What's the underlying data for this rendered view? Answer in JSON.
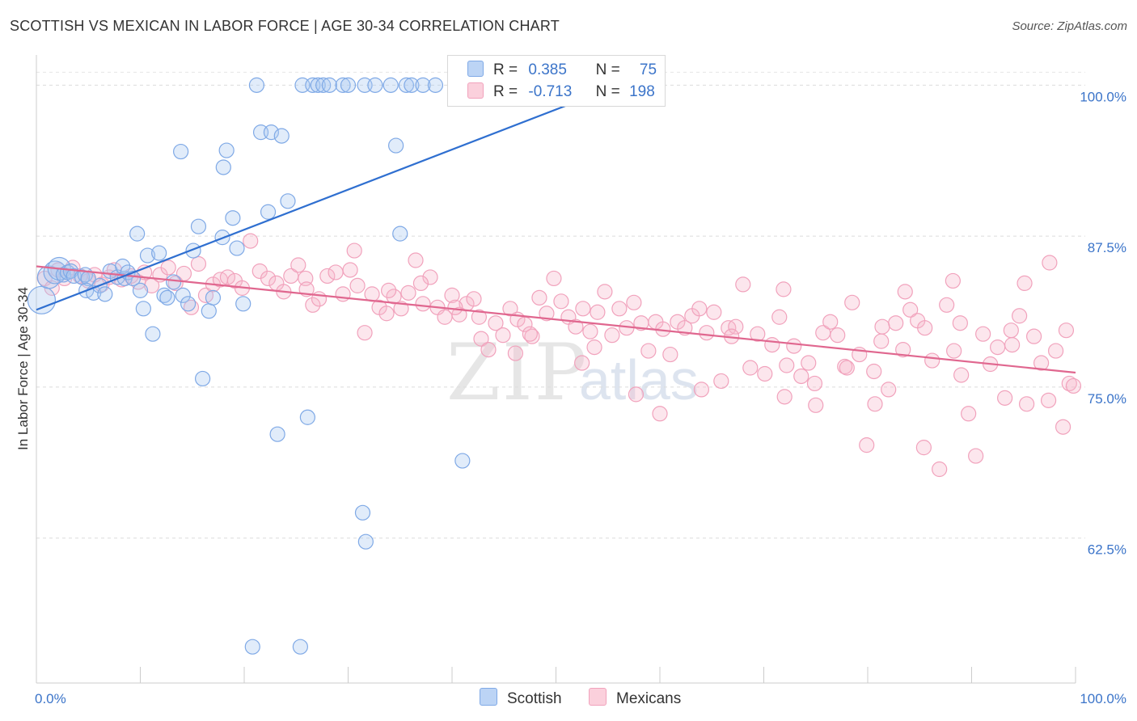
{
  "header": {
    "title": "SCOTTISH VS MEXICAN IN LABOR FORCE | AGE 30-34 CORRELATION CHART",
    "source": "Source: ZipAtlas.com"
  },
  "watermark": {
    "zip": "ZIP",
    "atlas": "atlas"
  },
  "legend": {
    "rows": [
      {
        "r_label": "R =",
        "r_value": "0.385",
        "n_label": "N =",
        "n_value": "75",
        "color": "#a8c8f0"
      },
      {
        "r_label": "R =",
        "r_value": "-0.713",
        "n_label": "N =",
        "n_value": "198",
        "color": "#f7b8cb"
      }
    ]
  },
  "bottom_legend": {
    "scottish": "Scottish",
    "mexicans": "Mexicans"
  },
  "chart_data": {
    "type": "scatter",
    "title": "SCOTTISH VS MEXICAN IN LABOR FORCE | AGE 30-34 CORRELATION CHART",
    "ylabel": "In Labor Force | Age 30-34",
    "xlabel": "",
    "xlim": [
      0,
      100
    ],
    "ylim": [
      50.5,
      102.5
    ],
    "x_tick_labels": [
      "0.0%",
      "100.0%"
    ],
    "y_ticks": [
      62.5,
      75.0,
      87.5,
      100.0
    ],
    "y_tick_labels": [
      "62.5%",
      "75.0%",
      "87.5%",
      "100.0%"
    ],
    "grid": true,
    "legend_position": "top-center",
    "colors": {
      "scottish": "#7fa9e6",
      "scottish_line": "#2f6fd0",
      "mexicans": "#f1a2bc",
      "mexicans_line": "#e0678f"
    },
    "series": [
      {
        "name": "Scottish",
        "r": 0.385,
        "n": 75,
        "trend": {
          "x": [
            0,
            60
          ],
          "y": [
            81.4,
            101.3
          ]
        },
        "points": [
          [
            0.5,
            82.2
          ],
          [
            1.2,
            84.1
          ],
          [
            1.8,
            84.5
          ],
          [
            2.2,
            84.8
          ],
          [
            2.6,
            84.3
          ],
          [
            3.0,
            84.5
          ],
          [
            3.3,
            84.6
          ],
          [
            3.6,
            84.2
          ],
          [
            4.4,
            84.1
          ],
          [
            4.7,
            84.3
          ],
          [
            5.0,
            84.0
          ],
          [
            4.8,
            83.0
          ],
          [
            5.5,
            82.8
          ],
          [
            6.1,
            83.4
          ],
          [
            6.6,
            82.7
          ],
          [
            7.1,
            84.6
          ],
          [
            7.8,
            84.1
          ],
          [
            8.5,
            84.0
          ],
          [
            8.3,
            85.0
          ],
          [
            8.8,
            84.5
          ],
          [
            9.3,
            84.0
          ],
          [
            9.7,
            87.7
          ],
          [
            10.0,
            83.0
          ],
          [
            10.3,
            81.5
          ],
          [
            10.7,
            85.9
          ],
          [
            11.2,
            79.4
          ],
          [
            11.8,
            86.1
          ],
          [
            12.3,
            82.6
          ],
          [
            12.6,
            82.4
          ],
          [
            13.2,
            83.7
          ],
          [
            14.1,
            82.6
          ],
          [
            14.6,
            81.9
          ],
          [
            15.1,
            86.3
          ],
          [
            15.6,
            88.3
          ],
          [
            16.0,
            75.7
          ],
          [
            16.6,
            81.3
          ],
          [
            17.0,
            82.4
          ],
          [
            17.9,
            87.4
          ],
          [
            18.3,
            94.6
          ],
          [
            18.9,
            89.0
          ],
          [
            19.3,
            86.5
          ],
          [
            19.9,
            81.9
          ],
          [
            13.9,
            94.5
          ],
          [
            18.0,
            93.2
          ],
          [
            21.2,
            100.0
          ],
          [
            21.6,
            96.1
          ],
          [
            22.3,
            89.5
          ],
          [
            22.6,
            96.1
          ],
          [
            23.2,
            71.1
          ],
          [
            23.6,
            95.8
          ],
          [
            24.2,
            90.4
          ],
          [
            25.6,
            100.0
          ],
          [
            26.1,
            72.5
          ],
          [
            26.6,
            100.0
          ],
          [
            27.1,
            100.0
          ],
          [
            27.6,
            100.0
          ],
          [
            28.2,
            100.0
          ],
          [
            29.5,
            100.0
          ],
          [
            30.0,
            100.0
          ],
          [
            31.6,
            100.0
          ],
          [
            32.6,
            100.0
          ],
          [
            34.1,
            100.0
          ],
          [
            35.6,
            100.0
          ],
          [
            36.1,
            100.0
          ],
          [
            37.2,
            100.0
          ],
          [
            38.4,
            100.0
          ],
          [
            40.6,
            100.0
          ],
          [
            41.7,
            100.0
          ],
          [
            35.0,
            87.7
          ],
          [
            34.6,
            95.0
          ],
          [
            31.4,
            64.6
          ],
          [
            31.7,
            62.2
          ],
          [
            20.8,
            53.5
          ],
          [
            25.4,
            53.5
          ],
          [
            41.0,
            68.9
          ],
          [
            59.6,
            100.0
          ]
        ]
      },
      {
        "name": "Mexicans",
        "r": -0.713,
        "n": 198,
        "trend": {
          "x": [
            0,
            100
          ],
          "y": [
            85.0,
            76.2
          ]
        },
        "points": [
          [
            0.8,
            84.0
          ],
          [
            1.5,
            83.2
          ],
          [
            2.1,
            84.7
          ],
          [
            2.7,
            84.0
          ],
          [
            3.5,
            84.9
          ],
          [
            4.2,
            84.2
          ],
          [
            5.0,
            83.8
          ],
          [
            5.6,
            84.3
          ],
          [
            6.3,
            83.5
          ],
          [
            7.0,
            84.1
          ],
          [
            7.5,
            84.7
          ],
          [
            8.2,
            83.9
          ],
          [
            9.1,
            84.2
          ],
          [
            9.8,
            83.7
          ],
          [
            10.4,
            84.5
          ],
          [
            11.1,
            83.4
          ],
          [
            11.9,
            84.3
          ],
          [
            12.7,
            84.9
          ],
          [
            13.4,
            83.6
          ],
          [
            14.2,
            84.4
          ],
          [
            14.9,
            81.6
          ],
          [
            15.6,
            85.2
          ],
          [
            16.3,
            82.6
          ],
          [
            17.0,
            83.5
          ],
          [
            17.7,
            83.9
          ],
          [
            18.4,
            84.1
          ],
          [
            19.1,
            83.8
          ],
          [
            19.8,
            83.2
          ],
          [
            20.6,
            87.1
          ],
          [
            21.5,
            84.6
          ],
          [
            22.3,
            84.0
          ],
          [
            23.1,
            83.6
          ],
          [
            23.8,
            82.9
          ],
          [
            24.5,
            84.2
          ],
          [
            25.2,
            85.1
          ],
          [
            25.9,
            84.0
          ],
          [
            26.6,
            81.8
          ],
          [
            27.2,
            82.3
          ],
          [
            28.0,
            84.2
          ],
          [
            28.8,
            84.5
          ],
          [
            29.5,
            82.7
          ],
          [
            30.2,
            84.7
          ],
          [
            30.9,
            83.4
          ],
          [
            31.6,
            79.5
          ],
          [
            32.3,
            82.7
          ],
          [
            33.0,
            81.6
          ],
          [
            33.7,
            81.1
          ],
          [
            34.4,
            82.5
          ],
          [
            35.1,
            81.5
          ],
          [
            35.8,
            82.8
          ],
          [
            36.5,
            85.5
          ],
          [
            37.2,
            81.9
          ],
          [
            37.9,
            84.1
          ],
          [
            38.6,
            81.6
          ],
          [
            39.3,
            80.8
          ],
          [
            40.0,
            82.6
          ],
          [
            40.7,
            81.0
          ],
          [
            41.4,
            81.9
          ],
          [
            42.1,
            82.3
          ],
          [
            42.8,
            79.0
          ],
          [
            43.5,
            78.1
          ],
          [
            44.2,
            80.3
          ],
          [
            44.9,
            79.3
          ],
          [
            45.6,
            81.5
          ],
          [
            46.3,
            80.6
          ],
          [
            47.0,
            80.2
          ],
          [
            47.7,
            79.2
          ],
          [
            48.4,
            82.4
          ],
          [
            49.1,
            81.1
          ],
          [
            49.8,
            84.0
          ],
          [
            50.5,
            82.1
          ],
          [
            51.2,
            80.8
          ],
          [
            51.9,
            80.0
          ],
          [
            52.6,
            81.5
          ],
          [
            53.3,
            79.6
          ],
          [
            54.0,
            81.2
          ],
          [
            54.7,
            82.9
          ],
          [
            55.4,
            79.3
          ],
          [
            56.1,
            81.5
          ],
          [
            56.8,
            79.9
          ],
          [
            57.5,
            82.0
          ],
          [
            58.2,
            80.3
          ],
          [
            58.9,
            78.0
          ],
          [
            59.6,
            80.4
          ],
          [
            60.3,
            79.8
          ],
          [
            61.0,
            77.7
          ],
          [
            61.7,
            80.4
          ],
          [
            62.4,
            79.9
          ],
          [
            63.1,
            80.9
          ],
          [
            63.8,
            81.5
          ],
          [
            64.5,
            79.5
          ],
          [
            65.2,
            81.2
          ],
          [
            65.9,
            75.5
          ],
          [
            66.6,
            79.9
          ],
          [
            67.3,
            80.0
          ],
          [
            68.0,
            83.5
          ],
          [
            68.7,
            76.6
          ],
          [
            69.4,
            79.4
          ],
          [
            70.1,
            76.1
          ],
          [
            70.8,
            78.5
          ],
          [
            71.5,
            80.8
          ],
          [
            72.2,
            76.8
          ],
          [
            72.9,
            78.4
          ],
          [
            73.6,
            75.9
          ],
          [
            74.3,
            77.0
          ],
          [
            75.0,
            73.5
          ],
          [
            75.7,
            79.5
          ],
          [
            76.4,
            80.4
          ],
          [
            77.1,
            79.3
          ],
          [
            77.8,
            76.7
          ],
          [
            78.5,
            82.0
          ],
          [
            79.2,
            77.7
          ],
          [
            79.9,
            70.2
          ],
          [
            80.6,
            76.3
          ],
          [
            81.3,
            78.8
          ],
          [
            82.0,
            74.8
          ],
          [
            82.7,
            80.3
          ],
          [
            83.4,
            78.1
          ],
          [
            84.1,
            81.4
          ],
          [
            84.8,
            80.5
          ],
          [
            85.5,
            79.9
          ],
          [
            86.2,
            77.2
          ],
          [
            86.9,
            68.2
          ],
          [
            87.6,
            81.8
          ],
          [
            88.3,
            78.0
          ],
          [
            89.0,
            76.0
          ],
          [
            89.7,
            72.8
          ],
          [
            90.4,
            69.3
          ],
          [
            91.1,
            79.4
          ],
          [
            91.8,
            76.9
          ],
          [
            92.5,
            78.3
          ],
          [
            93.2,
            74.1
          ],
          [
            93.9,
            78.5
          ],
          [
            94.6,
            80.9
          ],
          [
            95.3,
            73.6
          ],
          [
            96.0,
            79.2
          ],
          [
            96.7,
            77.0
          ],
          [
            97.4,
            73.9
          ],
          [
            98.1,
            78.0
          ],
          [
            98.8,
            71.7
          ],
          [
            99.4,
            75.3
          ],
          [
            99.8,
            75.1
          ],
          [
            30.6,
            86.3
          ],
          [
            37.0,
            83.6
          ],
          [
            46.1,
            77.8
          ],
          [
            53.7,
            78.3
          ],
          [
            64.0,
            74.8
          ],
          [
            71.9,
            83.1
          ],
          [
            78.0,
            76.6
          ],
          [
            83.6,
            82.9
          ],
          [
            88.2,
            83.8
          ],
          [
            97.5,
            85.3
          ],
          [
            57.7,
            74.4
          ],
          [
            72.0,
            74.2
          ],
          [
            80.7,
            73.6
          ],
          [
            85.4,
            70.0
          ],
          [
            93.8,
            79.7
          ],
          [
            26.0,
            83.1
          ],
          [
            33.9,
            83.0
          ],
          [
            40.3,
            81.6
          ],
          [
            47.5,
            79.4
          ],
          [
            52.5,
            77.0
          ],
          [
            60.0,
            72.8
          ],
          [
            66.9,
            79.2
          ],
          [
            74.9,
            75.3
          ],
          [
            81.4,
            80.0
          ],
          [
            88.9,
            80.3
          ],
          [
            95.1,
            83.6
          ],
          [
            99.1,
            79.7
          ],
          [
            42.6,
            80.8
          ]
        ]
      }
    ]
  }
}
